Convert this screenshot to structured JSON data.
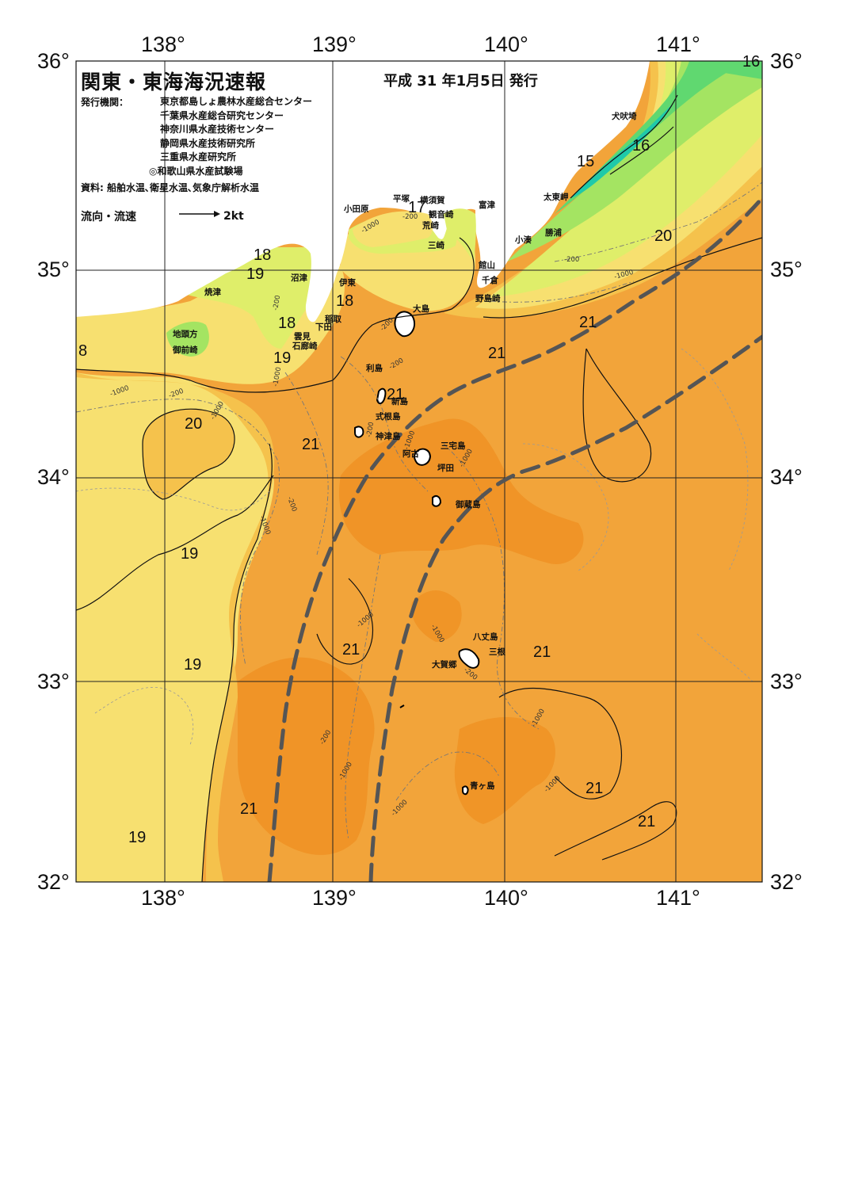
{
  "title": "関東・東海海況速報",
  "issue_date": "平成 31 年1月5日 発行",
  "issuer_label": "発行機関：",
  "issuers": [
    "東京都島しょ農林水産総合センター",
    "千葉県水産総合研究センター",
    "神奈川県水産技術センター",
    "静岡県水産技術研究所",
    "三重県水産研究所",
    "◎和歌山県水産試験場"
  ],
  "source": "資料: 船舶水温､衛星水温､気象庁解析水温",
  "flow_legend": {
    "label": "流向・流速",
    "unit": "2kt"
  },
  "axes": {
    "lon_labels": [
      "138°",
      "139°",
      "140°",
      "141°"
    ],
    "lat_labels": [
      "36°",
      "35°",
      "34°",
      "33°",
      "32°"
    ]
  },
  "colors": {
    "t14": "#3de6b4",
    "t15": "#1fc9aa",
    "t16": "#60d870",
    "t17": "#a4e462",
    "t18": "#dfee6a",
    "t19": "#f7e070",
    "t20": "#f5c24c",
    "t21": "#f2a43a",
    "t22": "#ef9426",
    "land": "#ffffff",
    "kuroshio": "#555555"
  },
  "places": [
    {
      "name": "犬吠埼"
    },
    {
      "name": "太東岬"
    },
    {
      "name": "勝浦"
    },
    {
      "name": "小湊"
    },
    {
      "name": "富津"
    },
    {
      "name": "館山"
    },
    {
      "name": "千倉"
    },
    {
      "name": "野島崎"
    },
    {
      "name": "横須賀"
    },
    {
      "name": "観音崎"
    },
    {
      "name": "荒崎"
    },
    {
      "name": "三崎"
    },
    {
      "name": "平塚"
    },
    {
      "name": "小田原"
    },
    {
      "name": "伊東"
    },
    {
      "name": "稲取"
    },
    {
      "name": "下田"
    },
    {
      "name": "雲見"
    },
    {
      "name": "石廊崎"
    },
    {
      "name": "沼津"
    },
    {
      "name": "焼津"
    },
    {
      "name": "地頭方"
    },
    {
      "name": "御前崎"
    },
    {
      "name": "大島"
    },
    {
      "name": "利島"
    },
    {
      "name": "新島"
    },
    {
      "name": "式根島"
    },
    {
      "name": "神津島"
    },
    {
      "name": "三宅島"
    },
    {
      "name": "阿古"
    },
    {
      "name": "坪田"
    },
    {
      "name": "御蔵島"
    },
    {
      "name": "八丈島"
    },
    {
      "name": "三根"
    },
    {
      "name": "大賀郷"
    },
    {
      "name": "青ヶ島"
    }
  ],
  "temperature_labels": [
    "16",
    "16",
    "15",
    "17",
    "18",
    "19",
    "18",
    "18",
    "19",
    "20",
    "20",
    "21",
    "21",
    "21",
    "21",
    "21",
    "19",
    "19",
    "21",
    "19",
    "21",
    "21",
    "21",
    "8"
  ],
  "depth_labels": [
    "-200",
    "-1000",
    "-200",
    "-200",
    "-1000",
    "-1000",
    "-1000",
    "-200",
    "-200",
    "-1000",
    "-200",
    "-200",
    "-1000",
    "-200",
    "-1000",
    "-1000",
    "-1000",
    "-1000",
    "-200",
    "-1000",
    "-1000",
    "-200",
    "-1000",
    "-1000"
  ]
}
